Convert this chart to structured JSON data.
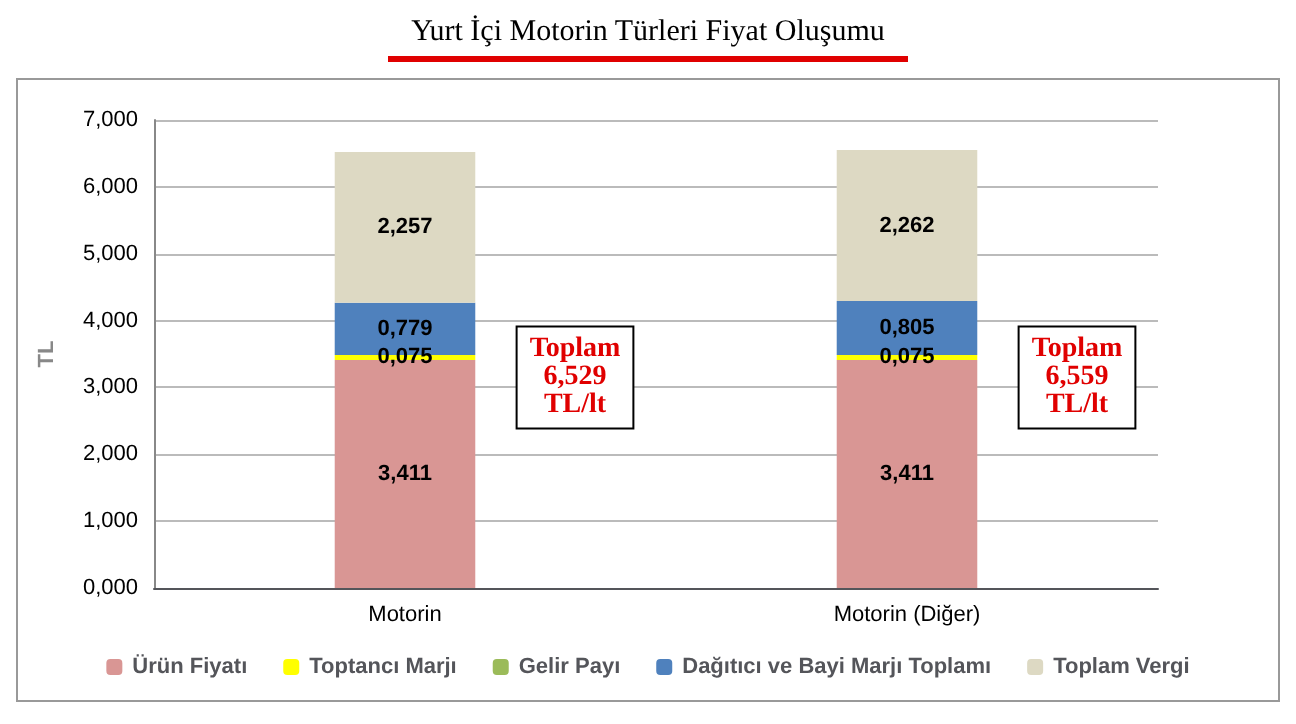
{
  "chart_data": {
    "type": "bar",
    "title": "Yurt İçi Motorin Türleri Fiyat Oluşumu",
    "ylabel": "TL",
    "stacked": true,
    "categories": [
      "Motorin",
      "Motorin (Diğer)"
    ],
    "series": [
      {
        "name": "Ürün Fiyatı",
        "color": "#d99694",
        "values": [
          3.411,
          3.411
        ],
        "value_labels": [
          "3,411",
          "3,411"
        ]
      },
      {
        "name": "Toptancı Marjı",
        "color": "#ffff00",
        "values": [
          0.075,
          0.075
        ],
        "value_labels": [
          "0,075",
          "0,075"
        ]
      },
      {
        "name": "Gelir Payı",
        "color": "#9bbb59",
        "values": [
          null,
          null
        ],
        "value_labels": [
          null,
          null
        ]
      },
      {
        "name": "Dağıtıcı ve Bayi Marjı Toplamı",
        "color": "#4f81bd",
        "values": [
          0.779,
          0.805
        ],
        "value_labels": [
          "0,779",
          "0,805"
        ]
      },
      {
        "name": "Toplam Vergi",
        "color": "#ddd9c3",
        "values": [
          2.257,
          2.262
        ],
        "value_labels": [
          "2,257",
          "2,262"
        ]
      }
    ],
    "ylim": [
      0,
      7
    ],
    "yticks": [
      {
        "value": 0,
        "label": "0,000"
      },
      {
        "value": 1,
        "label": "1,000"
      },
      {
        "value": 2,
        "label": "2,000"
      },
      {
        "value": 3,
        "label": "3,000"
      },
      {
        "value": 4,
        "label": "4,000"
      },
      {
        "value": 5,
        "label": "5,000"
      },
      {
        "value": 6,
        "label": "6,000"
      },
      {
        "value": 7,
        "label": "7,000"
      }
    ],
    "grid": "y",
    "legend": "bottom",
    "annotations": [
      "Toplam\n6,529\nTL/lt",
      "Toplam\n6,559\nTL/lt"
    ]
  }
}
